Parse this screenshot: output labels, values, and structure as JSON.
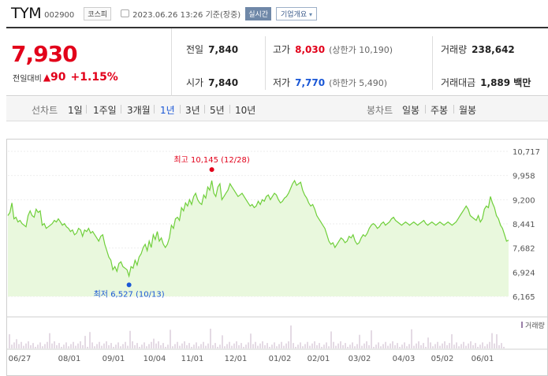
{
  "header": {
    "name": "TYM",
    "code": "002900",
    "market": "코스피",
    "datetime": "2023.06.26 13:26 기준(장중)",
    "realtime": "실시간",
    "company_info": "기업개요"
  },
  "quote": {
    "price": "7,930",
    "change_label": "전일대비",
    "change_arrow": "▲",
    "change_value": "90",
    "change_pct": "+1.15%",
    "prev_label": "전일",
    "prev_value": "7,840",
    "high_label": "고가",
    "high_value": "8,030",
    "upper_limit": "(상한가 10,190)",
    "volume_label": "거래량",
    "volume_value": "238,642",
    "open_label": "시가",
    "open_value": "7,840",
    "low_label": "저가",
    "low_value": "7,770",
    "lower_limit": "(하한가 5,490)",
    "amount_label": "거래대금",
    "amount_value": "1,889 백만"
  },
  "tabs": {
    "line_head": "선차트",
    "line": [
      "1일",
      "1주일",
      "3개월",
      "1년",
      "3년",
      "5년",
      "10년"
    ],
    "active_index": 3,
    "candle_head": "봉차트",
    "candle": [
      "일봉",
      "주봉",
      "월봉"
    ]
  },
  "colors": {
    "up": "#e2001a",
    "down": "#1a57d6",
    "line": "#6fcf3a",
    "fill": "#e9f8dd",
    "volume": "#c8b6c8"
  },
  "chart_data": {
    "type": "area",
    "y_ticks": [
      "10,717",
      "9,958",
      "9,200",
      "8,441",
      "7,682",
      "6,924",
      "6,165"
    ],
    "ylim": [
      6165,
      10717
    ],
    "x_ticks": [
      "06/27",
      "08/01",
      "09/01",
      "10/04",
      "11/01",
      "12/01",
      "01/02",
      "02/01",
      "03/02",
      "04/03",
      "05/02",
      "06/01"
    ],
    "high_annotation": "최고 10,145 (12/28)",
    "low_annotation": "최저 6,527 (10/13)",
    "volume_legend": "거래량",
    "high_point": {
      "date": "12/28",
      "value": 10145
    },
    "low_point": {
      "date": "10/13",
      "value": 6527
    },
    "series": [
      {
        "values": [
          8700,
          8800,
          9100,
          8600,
          8650,
          8500,
          8550,
          8450,
          8400,
          8350,
          8700,
          8850,
          8700,
          8650,
          8900,
          8800,
          8850,
          8400,
          8450,
          8300,
          8350,
          8400,
          8450,
          8550,
          8500,
          8600,
          8500,
          8400,
          8450,
          8350,
          8300,
          8200,
          8250,
          8100,
          8150,
          8300,
          8250,
          8050,
          8250,
          8200,
          8300,
          8150,
          8200,
          8100,
          8000,
          7900,
          8050,
          8100,
          7800,
          7600,
          7400,
          7300,
          7000,
          7100,
          6950,
          7200,
          7250,
          7100,
          7050,
          7000,
          6800,
          7100,
          7050,
          7300,
          7150,
          7400,
          7500,
          7700,
          7800,
          7600,
          7900,
          7700,
          8100,
          7950,
          8200,
          7900,
          8000,
          7800,
          7700,
          7800,
          8000,
          8400,
          8300,
          8600,
          8650,
          8550,
          8950,
          8850,
          9100,
          9000,
          9200,
          9050,
          9300,
          9400,
          9200,
          9100,
          9050,
          9350,
          9250,
          9600,
          9500,
          9800,
          9400,
          9300,
          9600,
          9700,
          9200,
          9300,
          9400,
          9500,
          9700,
          9600,
          9500,
          9400,
          9300,
          9350,
          9400,
          9300,
          9200,
          9100,
          9000,
          9050,
          8950,
          9000,
          9150,
          9050,
          9200,
          9150,
          9300,
          9350,
          9200,
          9300,
          9400,
          9350,
          9200,
          9100,
          9150,
          9250,
          9300,
          9400,
          9550,
          9700,
          9800,
          9650,
          9700,
          9750,
          9500,
          9350,
          9250,
          9100,
          9000,
          9050,
          8900,
          8700,
          8600,
          8500,
          8400,
          8300,
          8100,
          7900,
          7800,
          7850,
          7700,
          7800,
          7900,
          8000,
          7950,
          7850,
          7900,
          8050,
          8000,
          8100,
          7900,
          7800,
          7850,
          8000,
          8100,
          8050,
          8150,
          8300,
          8400,
          8450,
          8400,
          8300,
          8350,
          8450,
          8500,
          8400,
          8450,
          8500,
          8600,
          8650,
          8550,
          8500,
          8450,
          8400,
          8450,
          8500,
          8450,
          8400,
          8450,
          8500,
          8450,
          8400,
          8450,
          8500,
          8550,
          8450,
          8400,
          8450,
          8500,
          8450,
          8400,
          8450,
          8500,
          8450,
          8400,
          8450,
          8500,
          8450,
          8400,
          8450,
          8500,
          8600,
          8700,
          8800,
          8900,
          9000,
          8900,
          8700,
          8650,
          8600,
          8550,
          8700,
          8500,
          8600,
          8900,
          9000,
          8950,
          9300,
          9100,
          8950,
          8700,
          8600,
          8400,
          8300,
          8100,
          7900,
          7930
        ]
      }
    ]
  }
}
